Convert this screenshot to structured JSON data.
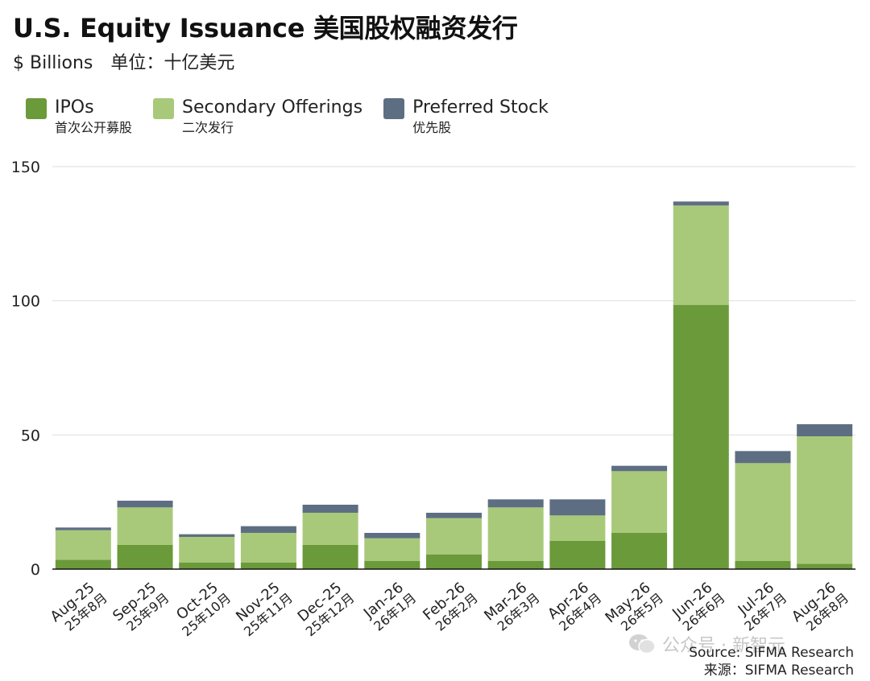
{
  "title": "U.S. Equity Issuance 美国股权融资发行",
  "subtitle": {
    "unit": "$ Billions",
    "unit_zh": "单位：十亿美元"
  },
  "legend": [
    {
      "label": "IPOs",
      "label_zh": "首次公开募股",
      "color": "#6b9a3a"
    },
    {
      "label": "Secondary Offerings",
      "label_zh": "二次发行",
      "color": "#a9c97a"
    },
    {
      "label": "Preferred Stock",
      "label_zh": "优先股",
      "color": "#5e6e82"
    }
  ],
  "source": {
    "en": "Source: SIFMA Research",
    "zh": "来源：SIFMA Research"
  },
  "watermark": {
    "text": "公众号 · 新智元",
    "icon": "wechat-icon"
  },
  "chart_data": {
    "type": "bar",
    "stacked": true,
    "categories": [
      "Aug-25",
      "Sep-25",
      "Oct-25",
      "Nov-25",
      "Dec-25",
      "Jan-26",
      "Feb-26",
      "Mar-26",
      "Apr-26",
      "May-26",
      "Jun-26",
      "Jul-26",
      "Aug-26"
    ],
    "categories_zh": [
      "25年8月",
      "25年9月",
      "25年10月",
      "25年11月",
      "25年12月",
      "26年1月",
      "26年2月",
      "26年3月",
      "26年4月",
      "26年5月",
      "26年6月",
      "26年7月",
      "26年8月"
    ],
    "series": [
      {
        "name": "IPOs",
        "color": "#6b9a3a",
        "values": [
          3.5,
          9,
          2.5,
          2.5,
          9,
          3,
          5.5,
          3,
          10.5,
          13.5,
          98.5,
          3,
          2
        ]
      },
      {
        "name": "Secondary Offerings",
        "color": "#a9c97a",
        "values": [
          11,
          14,
          9.5,
          11,
          12,
          8.5,
          13.5,
          20,
          9.5,
          23,
          37,
          36.5,
          47.5
        ]
      },
      {
        "name": "Preferred Stock",
        "color": "#5e6e82",
        "values": [
          1,
          2.5,
          1,
          2.5,
          3,
          2,
          2,
          3,
          6,
          2,
          1.5,
          4.5,
          4.5
        ]
      }
    ],
    "yticks": [
      0,
      50,
      100,
      150
    ],
    "ylim": [
      0,
      150
    ],
    "grid": true,
    "legend_position": "top-left"
  }
}
